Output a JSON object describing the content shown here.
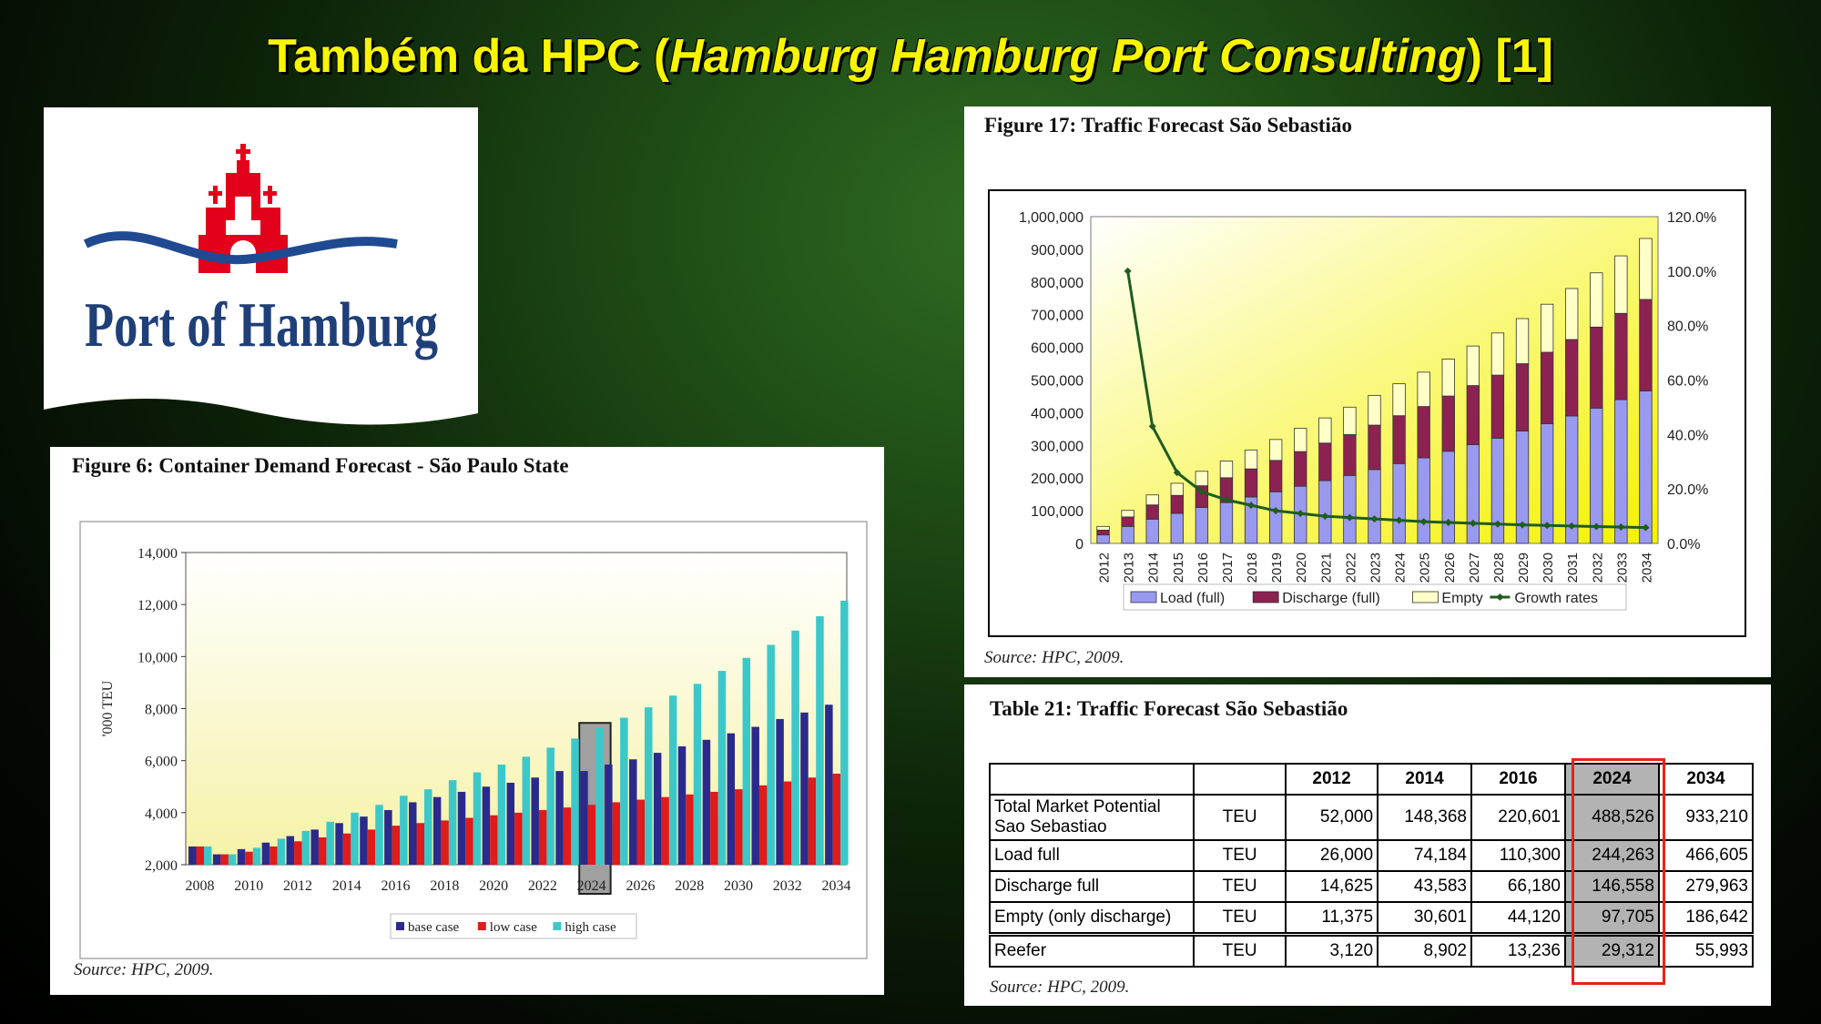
{
  "slide": {
    "title_prefix": "Também da HPC (",
    "title_italic": "Hamburg Hamburg Port Consulting",
    "title_suffix": ") [1]"
  },
  "logo": {
    "text": "Port of Hamburg"
  },
  "figure6": {
    "caption": "Figure 6: Container Demand Forecast - São Paulo State",
    "source": "Source: HPC, 2009.",
    "chart_data": {
      "type": "bar",
      "ylabel": "'000 TEU",
      "ylim": [
        2000,
        14000
      ],
      "yticks": [
        "2,000",
        "4,000",
        "6,000",
        "8,000",
        "10,000",
        "12,000",
        "14,000"
      ],
      "categories": [
        "2008",
        "2009",
        "2010",
        "2011",
        "2012",
        "2013",
        "2014",
        "2015",
        "2016",
        "2017",
        "2018",
        "2019",
        "2020",
        "2021",
        "2022",
        "2023",
        "2024",
        "2025",
        "2026",
        "2027",
        "2028",
        "2029",
        "2030",
        "2031",
        "2032",
        "2033",
        "2034"
      ],
      "xtick_labels": [
        "2008",
        "2010",
        "2012",
        "2014",
        "2016",
        "2018",
        "2020",
        "2022",
        "2024",
        "2026",
        "2028",
        "2030",
        "2032",
        "2034"
      ],
      "highlight": "2024",
      "legend_position": "bottom",
      "series": [
        {
          "name": "base case",
          "color": "#2b2a8c",
          "values": [
            2700,
            2400,
            2600,
            2850,
            3100,
            3350,
            3600,
            3850,
            4100,
            4400,
            4600,
            4800,
            5000,
            5150,
            5350,
            5600,
            5600,
            5850,
            6050,
            6300,
            6550,
            6800,
            7050,
            7300,
            7600,
            7850,
            8150
          ]
        },
        {
          "name": "low case",
          "color": "#e01b1b",
          "values": [
            2700,
            2400,
            2500,
            2700,
            2900,
            3050,
            3200,
            3350,
            3500,
            3600,
            3700,
            3800,
            3900,
            4000,
            4100,
            4200,
            4300,
            4400,
            4500,
            4600,
            4700,
            4800,
            4900,
            5050,
            5200,
            5350,
            5500
          ]
        },
        {
          "name": "high case",
          "color": "#3cc8c8",
          "values": [
            2700,
            2400,
            2650,
            3000,
            3300,
            3650,
            4000,
            4300,
            4650,
            4900,
            5250,
            5550,
            5850,
            6150,
            6500,
            6850,
            7250,
            7650,
            8050,
            8500,
            8950,
            9450,
            9950,
            10450,
            11000,
            11550,
            12150
          ]
        }
      ]
    }
  },
  "figure17": {
    "caption": "Figure 17: Traffic Forecast São Sebastião",
    "source": "Source: HPC, 2009.",
    "chart_data": {
      "type": "bar",
      "stacked": true,
      "ylim": [
        0,
        1000000
      ],
      "y2lim": [
        0,
        120
      ],
      "yticks": [
        "0",
        "100,000",
        "200,000",
        "300,000",
        "400,000",
        "500,000",
        "600,000",
        "700,000",
        "800,000",
        "900,000",
        "1,000,000"
      ],
      "y2ticks": [
        "0.0%",
        "20.0%",
        "40.0%",
        "60.0%",
        "80.0%",
        "100.0%",
        "120.0%"
      ],
      "categories": [
        "2012",
        "2013",
        "2014",
        "2015",
        "2016",
        "2017",
        "2018",
        "2019",
        "2020",
        "2021",
        "2022",
        "2023",
        "2024",
        "2025",
        "2026",
        "2027",
        "2028",
        "2029",
        "2030",
        "2031",
        "2032",
        "2033",
        "2034"
      ],
      "legend_position": "bottom",
      "series": [
        {
          "name": "Load (full)",
          "color": "#9999f0",
          "values": [
            26000,
            52000,
            74184,
            92000,
            110300,
            125000,
            142000,
            158000,
            175000,
            192000,
            208000,
            226000,
            244263,
            262000,
            282000,
            302000,
            322000,
            344000,
            366000,
            390000,
            414000,
            440000,
            466605
          ]
        },
        {
          "name": "Discharge (full)",
          "color": "#8b2252",
          "values": [
            14625,
            29000,
            43583,
            55000,
            66180,
            76000,
            86000,
            96000,
            106000,
            115000,
            125000,
            136000,
            146558,
            157000,
            169000,
            181000,
            193000,
            206000,
            219000,
            234000,
            248000,
            264000,
            279963
          ]
        },
        {
          "name": "Empty",
          "color": "#ffffc8",
          "values": [
            11375,
            20000,
            30601,
            37000,
            44120,
            51000,
            58000,
            64000,
            71000,
            77000,
            84000,
            91000,
            97705,
            105000,
            113000,
            121000,
            129000,
            138000,
            147000,
            156000,
            166000,
            176000,
            186642
          ]
        },
        {
          "name": "Growth rates",
          "color": "#1f5c1f",
          "axis": "secondary",
          "values": [
            null,
            100,
            43,
            26,
            19,
            16,
            14,
            12,
            11,
            10,
            9.5,
            9,
            8.5,
            8,
            7.7,
            7.4,
            7.1,
            6.8,
            6.6,
            6.4,
            6.2,
            6.0,
            5.8
          ]
        }
      ]
    }
  },
  "table21": {
    "caption": "Table 21: Traffic Forecast São Sebastião",
    "source": "Source: HPC, 2009.",
    "headers": [
      "",
      "",
      "2012",
      "2014",
      "2016",
      "2024",
      "2034"
    ],
    "highlight_column": "2024",
    "rows": [
      {
        "label_line1": "Total Market Potential",
        "label_line2": "Sao Sebastiao",
        "unit": "TEU",
        "values": [
          "52,000",
          "148,368",
          "220,601",
          "488,526",
          "933,210"
        ]
      },
      {
        "label_line1": "Load full",
        "label_line2": "",
        "unit": "TEU",
        "values": [
          "26,000",
          "74,184",
          "110,300",
          "244,263",
          "466,605"
        ]
      },
      {
        "label_line1": "Discharge full",
        "label_line2": "",
        "unit": "TEU",
        "values": [
          "14,625",
          "43,583",
          "66,180",
          "146,558",
          "279,963"
        ]
      },
      {
        "label_line1": "Empty (only discharge)",
        "label_line2": "",
        "unit": "TEU",
        "values": [
          "11,375",
          "30,601",
          "44,120",
          "97,705",
          "186,642"
        ]
      },
      {
        "label_line1": "Reefer",
        "label_line2": "",
        "unit": "TEU",
        "values": [
          "3,120",
          "8,902",
          "13,236",
          "29,312",
          "55,993"
        ]
      }
    ]
  }
}
